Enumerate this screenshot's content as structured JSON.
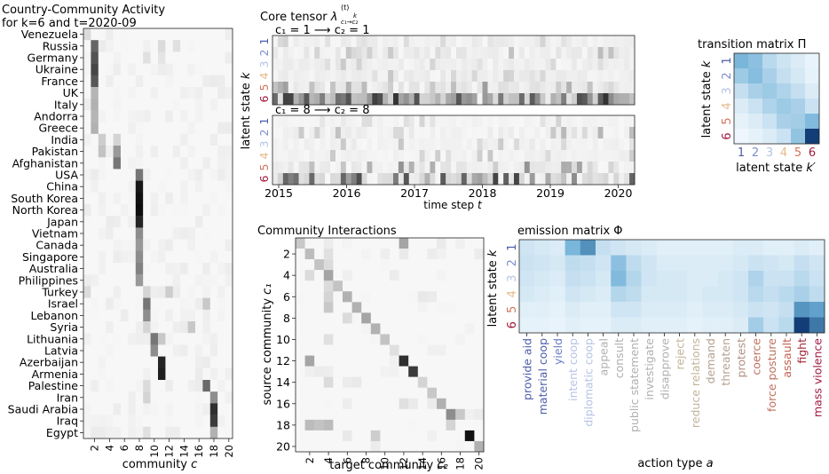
{
  "state_colors": [
    "#4d5eaa",
    "#7b8fcb",
    "#b6c3e6",
    "#e6b98c",
    "#d4735c",
    "#a11a3e"
  ],
  "action_colors": [
    "#4d5eaa",
    "#4d5eaa",
    "#6a7ec5",
    "#b6c3e6",
    "#b6c3e6",
    "#b0b0b0",
    "#b0b0b0",
    "#b0b0b0",
    "#b0b0b0",
    "#b0b0b0",
    "#c4b29a",
    "#c4b29a",
    "#b6a090",
    "#b6a090",
    "#b09080",
    "#c07060",
    "#c07060",
    "#c06050",
    "#a02838",
    "#a01840"
  ],
  "chart_data": [
    {
      "type": "heatmap",
      "id": "activity",
      "title_lines": [
        "Country-Community Activity",
        "for k=6 and t=2020-09"
      ],
      "xlabel_text": "community ",
      "xlabel_var": "c",
      "countries": [
        "Venezuela",
        "Russia",
        "Germany",
        "Ukraine",
        "France",
        "UK",
        "Italy",
        "Andorra",
        "Greece",
        "India",
        "Pakistan",
        "Afghanistan",
        "USA",
        "China",
        "South Korea",
        "North Korea",
        "Japan",
        "Vietnam",
        "Canada",
        "Singapore",
        "Australia",
        "Philippines",
        "Turkey",
        "Israel",
        "Lebanon",
        "Syria",
        "Lithuania",
        "Latvia",
        "Azerbaijan",
        "Armenia",
        "Palestine",
        "Iran",
        "Saudi Arabia",
        "Iraq",
        "Egypt"
      ],
      "x_ticks": [
        "2",
        "4",
        "6",
        "8",
        "10",
        "12",
        "14",
        "16",
        "18",
        "20"
      ],
      "n_communities": 20,
      "strong_cells": [
        {
          "row": "Venezuela",
          "col": 1,
          "v": 0.12
        },
        {
          "row": "Russia",
          "col": 2,
          "v": 0.62
        },
        {
          "row": "Germany",
          "col": 2,
          "v": 0.7
        },
        {
          "row": "Ukraine",
          "col": 2,
          "v": 0.75
        },
        {
          "row": "France",
          "col": 2,
          "v": 0.68
        },
        {
          "row": "UK",
          "col": 2,
          "v": 0.28
        },
        {
          "row": "Italy",
          "col": 2,
          "v": 0.3
        },
        {
          "row": "Andorra",
          "col": 2,
          "v": 0.28
        },
        {
          "row": "Greece",
          "col": 2,
          "v": 0.3
        },
        {
          "row": "India",
          "col": 3,
          "v": 0.18
        },
        {
          "row": "Pakistan",
          "col": 3,
          "v": 0.22
        },
        {
          "row": "Pakistan",
          "col": 5,
          "v": 0.4
        },
        {
          "row": "Afghanistan",
          "col": 5,
          "v": 0.55
        },
        {
          "row": "India",
          "col": 5,
          "v": 0.15
        },
        {
          "row": "USA",
          "col": 8,
          "v": 0.55
        },
        {
          "row": "China",
          "col": 8,
          "v": 0.95
        },
        {
          "row": "South Korea",
          "col": 8,
          "v": 0.98
        },
        {
          "row": "North Korea",
          "col": 8,
          "v": 0.99
        },
        {
          "row": "Japan",
          "col": 8,
          "v": 0.9
        },
        {
          "row": "Vietnam",
          "col": 8,
          "v": 0.45
        },
        {
          "row": "Canada",
          "col": 8,
          "v": 0.4
        },
        {
          "row": "Singapore",
          "col": 8,
          "v": 0.45
        },
        {
          "row": "Australia",
          "col": 8,
          "v": 0.5
        },
        {
          "row": "Philippines",
          "col": 8,
          "v": 0.4
        },
        {
          "row": "Turkey",
          "col": 1,
          "v": 0.12
        },
        {
          "row": "Turkey",
          "col": 9,
          "v": 0.15
        },
        {
          "row": "Turkey",
          "col": 12,
          "v": 0.18
        },
        {
          "row": "Israel",
          "col": 9,
          "v": 0.55
        },
        {
          "row": "Lebanon",
          "col": 9,
          "v": 0.45
        },
        {
          "row": "Syria",
          "col": 9,
          "v": 0.15
        },
        {
          "row": "Syria",
          "col": 15,
          "v": 0.2
        },
        {
          "row": "Israel",
          "col": 17,
          "v": 0.2
        },
        {
          "row": "Lithuania",
          "col": 10,
          "v": 0.55
        },
        {
          "row": "Latvia",
          "col": 10,
          "v": 0.45
        },
        {
          "row": "Azerbaijan",
          "col": 11,
          "v": 0.9
        },
        {
          "row": "Armenia",
          "col": 11,
          "v": 0.92
        },
        {
          "row": "Lithuania",
          "col": 11,
          "v": 0.2
        },
        {
          "row": "Palestine",
          "col": 17,
          "v": 0.6
        },
        {
          "row": "Palestine",
          "col": 9,
          "v": 0.12
        },
        {
          "row": "Iran",
          "col": 18,
          "v": 0.45
        },
        {
          "row": "Iran",
          "col": 9,
          "v": 0.15
        },
        {
          "row": "Saudi Arabia",
          "col": 18,
          "v": 0.85
        },
        {
          "row": "Iraq",
          "col": 18,
          "v": 0.8
        },
        {
          "row": "Egypt",
          "col": 18,
          "v": 0.3
        },
        {
          "row": "Egypt",
          "col": 9,
          "v": 0.1
        },
        {
          "row": "Russia",
          "col": 11,
          "v": 0.12
        },
        {
          "row": "Germany",
          "col": 9,
          "v": 0.1
        },
        {
          "row": "Russia",
          "col": 13,
          "v": 0.1
        },
        {
          "row": "Germany",
          "col": 11,
          "v": 0.08
        }
      ]
    },
    {
      "type": "heatmap",
      "id": "core_tensor",
      "title_text": "Core tensor ",
      "title_symbol": "λ",
      "title_sup": "(t)",
      "title_sub": "c₁→c₂",
      "title_k": "k",
      "panel_titles": [
        "c₁ = 1 ⟶ c₂ = 1",
        "c₁ = 8 ⟶ c₂ = 8"
      ],
      "ylabel_text": "latent state ",
      "ylabel_var": "k",
      "xlabel_text": "time step ",
      "xlabel_var": "t",
      "states": [
        "1",
        "2",
        "3",
        "4",
        "5",
        "6"
      ],
      "years": [
        "2015",
        "2016",
        "2017",
        "2018",
        "2019",
        "2020"
      ],
      "time_steps": 69
    },
    {
      "type": "heatmap",
      "id": "transition",
      "title": "transition matrix Π",
      "ylabel_text": "latent state ",
      "ylabel_var": "k",
      "xlabel_text": "latent state ",
      "xlabel_var": "k′",
      "states": [
        "1",
        "2",
        "3",
        "4",
        "5",
        "6"
      ],
      "values": [
        [
          0.45,
          0.38,
          0.22,
          0.15,
          0.1,
          0.05
        ],
        [
          0.32,
          0.4,
          0.28,
          0.18,
          0.12,
          0.06
        ],
        [
          0.18,
          0.28,
          0.32,
          0.26,
          0.18,
          0.1
        ],
        [
          0.1,
          0.16,
          0.26,
          0.32,
          0.28,
          0.16
        ],
        [
          0.06,
          0.1,
          0.16,
          0.28,
          0.3,
          0.42
        ],
        [
          0.03,
          0.06,
          0.1,
          0.16,
          0.36,
          0.95
        ]
      ]
    },
    {
      "type": "heatmap",
      "id": "interactions",
      "title": "Community Interactions",
      "ylabel_text": "source community ",
      "ylabel_var": "c₁",
      "xlabel_text": "target community ",
      "xlabel_var": "c₂",
      "y_ticks": [
        "2",
        "4",
        "6",
        "8",
        "10",
        "12",
        "14",
        "16",
        "18",
        "20"
      ],
      "x_ticks": [
        "2",
        "4",
        "6",
        "8",
        "10",
        "12",
        "14",
        "16",
        "18",
        "20"
      ],
      "n": 20,
      "cells": [
        {
          "r": 1,
          "c": 1,
          "v": 0.2
        },
        {
          "r": 1,
          "c": 12,
          "v": 0.35
        },
        {
          "r": 2,
          "c": 2,
          "v": 0.25
        },
        {
          "r": 3,
          "c": 3,
          "v": 0.22
        },
        {
          "r": 3,
          "c": 4,
          "v": 0.12
        },
        {
          "r": 4,
          "c": 4,
          "v": 0.35
        },
        {
          "r": 5,
          "c": 5,
          "v": 0.22
        },
        {
          "r": 6,
          "c": 6,
          "v": 0.3
        },
        {
          "r": 7,
          "c": 7,
          "v": 0.3
        },
        {
          "r": 8,
          "c": 8,
          "v": 0.35
        },
        {
          "r": 9,
          "c": 9,
          "v": 0.3
        },
        {
          "r": 10,
          "c": 10,
          "v": 0.22
        },
        {
          "r": 11,
          "c": 11,
          "v": 0.1
        },
        {
          "r": 12,
          "c": 12,
          "v": 0.85
        },
        {
          "r": 12,
          "c": 2,
          "v": 0.35
        },
        {
          "r": 13,
          "c": 13,
          "v": 0.8
        },
        {
          "r": 14,
          "c": 14,
          "v": 0.15
        },
        {
          "r": 15,
          "c": 15,
          "v": 0.2
        },
        {
          "r": 16,
          "c": 16,
          "v": 0.3
        },
        {
          "r": 17,
          "c": 17,
          "v": 0.45
        },
        {
          "r": 17,
          "c": 18,
          "v": 0.2
        },
        {
          "r": 18,
          "c": 2,
          "v": 0.25
        },
        {
          "r": 18,
          "c": 3,
          "v": 0.22
        },
        {
          "r": 18,
          "c": 4,
          "v": 0.25
        },
        {
          "r": 19,
          "c": 19,
          "v": 0.98
        },
        {
          "r": 19,
          "c": 9,
          "v": 0.18
        },
        {
          "r": 20,
          "c": 20,
          "v": 0.3
        },
        {
          "r": 6,
          "c": 4,
          "v": 0.15
        },
        {
          "r": 8,
          "c": 6,
          "v": 0.12
        },
        {
          "r": 10,
          "c": 4,
          "v": 0.1
        },
        {
          "r": 14,
          "c": 4,
          "v": 0.12
        },
        {
          "r": 16,
          "c": 12,
          "v": 0.1
        },
        {
          "r": 18,
          "c": 17,
          "v": 0.15
        },
        {
          "r": 2,
          "c": 4,
          "v": 0.1
        },
        {
          "r": 4,
          "c": 2,
          "v": 0.12
        },
        {
          "r": 7,
          "c": 4,
          "v": 0.2
        },
        {
          "r": 5,
          "c": 4,
          "v": 0.12
        }
      ]
    },
    {
      "type": "heatmap",
      "id": "emission",
      "title": "emission matrix Φ",
      "ylabel_text": "latent state ",
      "ylabel_var": "k",
      "xlabel_text": "action type ",
      "xlabel_var": "a",
      "states": [
        "1",
        "2",
        "3",
        "4",
        "5",
        "6"
      ],
      "actions": [
        "provide aid",
        "material coop",
        "yield",
        "intent coop",
        "diplomatic coop",
        "appeal",
        "consult",
        "public statement",
        "investigate",
        "disapprove",
        "reject",
        "reduce relations",
        "demand",
        "threaten",
        "protest",
        "coerce",
        "force posture",
        "assault",
        "fight",
        "mass violence"
      ],
      "values": [
        [
          0.14,
          0.12,
          0.1,
          0.45,
          0.62,
          0.18,
          0.14,
          0.12,
          0.1,
          0.08,
          0.08,
          0.08,
          0.08,
          0.08,
          0.1,
          0.1,
          0.08,
          0.08,
          0.1,
          0.08
        ],
        [
          0.16,
          0.14,
          0.12,
          0.2,
          0.18,
          0.14,
          0.38,
          0.2,
          0.14,
          0.1,
          0.1,
          0.1,
          0.1,
          0.1,
          0.12,
          0.16,
          0.14,
          0.12,
          0.18,
          0.14
        ],
        [
          0.14,
          0.12,
          0.1,
          0.18,
          0.16,
          0.12,
          0.42,
          0.24,
          0.14,
          0.12,
          0.12,
          0.1,
          0.1,
          0.12,
          0.14,
          0.26,
          0.16,
          0.16,
          0.22,
          0.16
        ],
        [
          0.12,
          0.1,
          0.08,
          0.14,
          0.12,
          0.1,
          0.24,
          0.2,
          0.12,
          0.12,
          0.12,
          0.1,
          0.12,
          0.12,
          0.14,
          0.22,
          0.18,
          0.22,
          0.28,
          0.2
        ],
        [
          0.08,
          0.08,
          0.06,
          0.1,
          0.08,
          0.08,
          0.14,
          0.14,
          0.1,
          0.1,
          0.1,
          0.08,
          0.1,
          0.1,
          0.12,
          0.16,
          0.14,
          0.18,
          0.6,
          0.55
        ],
        [
          0.06,
          0.06,
          0.05,
          0.08,
          0.06,
          0.06,
          0.1,
          0.1,
          0.08,
          0.08,
          0.08,
          0.06,
          0.08,
          0.08,
          0.1,
          0.3,
          0.16,
          0.22,
          0.95,
          0.72
        ]
      ]
    }
  ]
}
